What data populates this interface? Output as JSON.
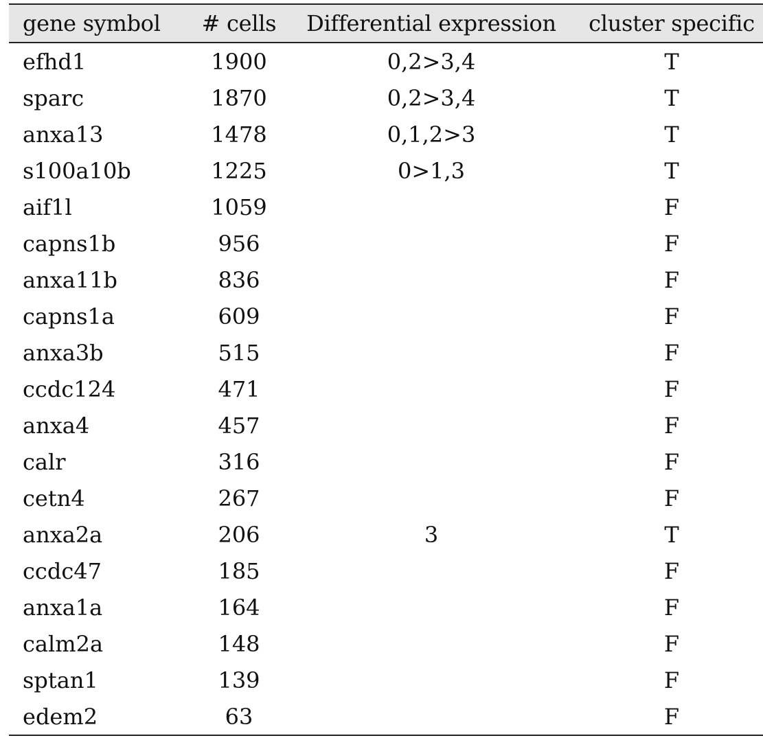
{
  "table": {
    "headers": {
      "gene": "gene symbol",
      "cells": "# cells",
      "diff": "Differential expression",
      "spec": "cluster specific"
    },
    "rows": [
      {
        "gene": "efhd1",
        "cells": "1900",
        "diff": "0,2>3,4",
        "spec": "T"
      },
      {
        "gene": "sparc",
        "cells": "1870",
        "diff": "0,2>3,4",
        "spec": "T"
      },
      {
        "gene": "anxa13",
        "cells": "1478",
        "diff": "0,1,2>3",
        "spec": "T"
      },
      {
        "gene": "s100a10b",
        "cells": "1225",
        "diff": "0>1,3",
        "spec": "T"
      },
      {
        "gene": "aif1l",
        "cells": "1059",
        "diff": "",
        "spec": "F"
      },
      {
        "gene": "capns1b",
        "cells": "956",
        "diff": "",
        "spec": "F"
      },
      {
        "gene": "anxa11b",
        "cells": "836",
        "diff": "",
        "spec": "F"
      },
      {
        "gene": "capns1a",
        "cells": "609",
        "diff": "",
        "spec": "F"
      },
      {
        "gene": "anxa3b",
        "cells": "515",
        "diff": "",
        "spec": "F"
      },
      {
        "gene": "ccdc124",
        "cells": "471",
        "diff": "",
        "spec": "F"
      },
      {
        "gene": "anxa4",
        "cells": "457",
        "diff": "",
        "spec": "F"
      },
      {
        "gene": "calr",
        "cells": "316",
        "diff": "",
        "spec": "F"
      },
      {
        "gene": "cetn4",
        "cells": "267",
        "diff": "",
        "spec": "F"
      },
      {
        "gene": "anxa2a",
        "cells": "206",
        "diff": "3",
        "spec": "T"
      },
      {
        "gene": "ccdc47",
        "cells": "185",
        "diff": "",
        "spec": "F"
      },
      {
        "gene": "anxa1a",
        "cells": "164",
        "diff": "",
        "spec": "F"
      },
      {
        "gene": "calm2a",
        "cells": "148",
        "diff": "",
        "spec": "F"
      },
      {
        "gene": "sptan1",
        "cells": "139",
        "diff": "",
        "spec": "F"
      },
      {
        "gene": "edem2",
        "cells": "63",
        "diff": "",
        "spec": "F"
      }
    ]
  }
}
